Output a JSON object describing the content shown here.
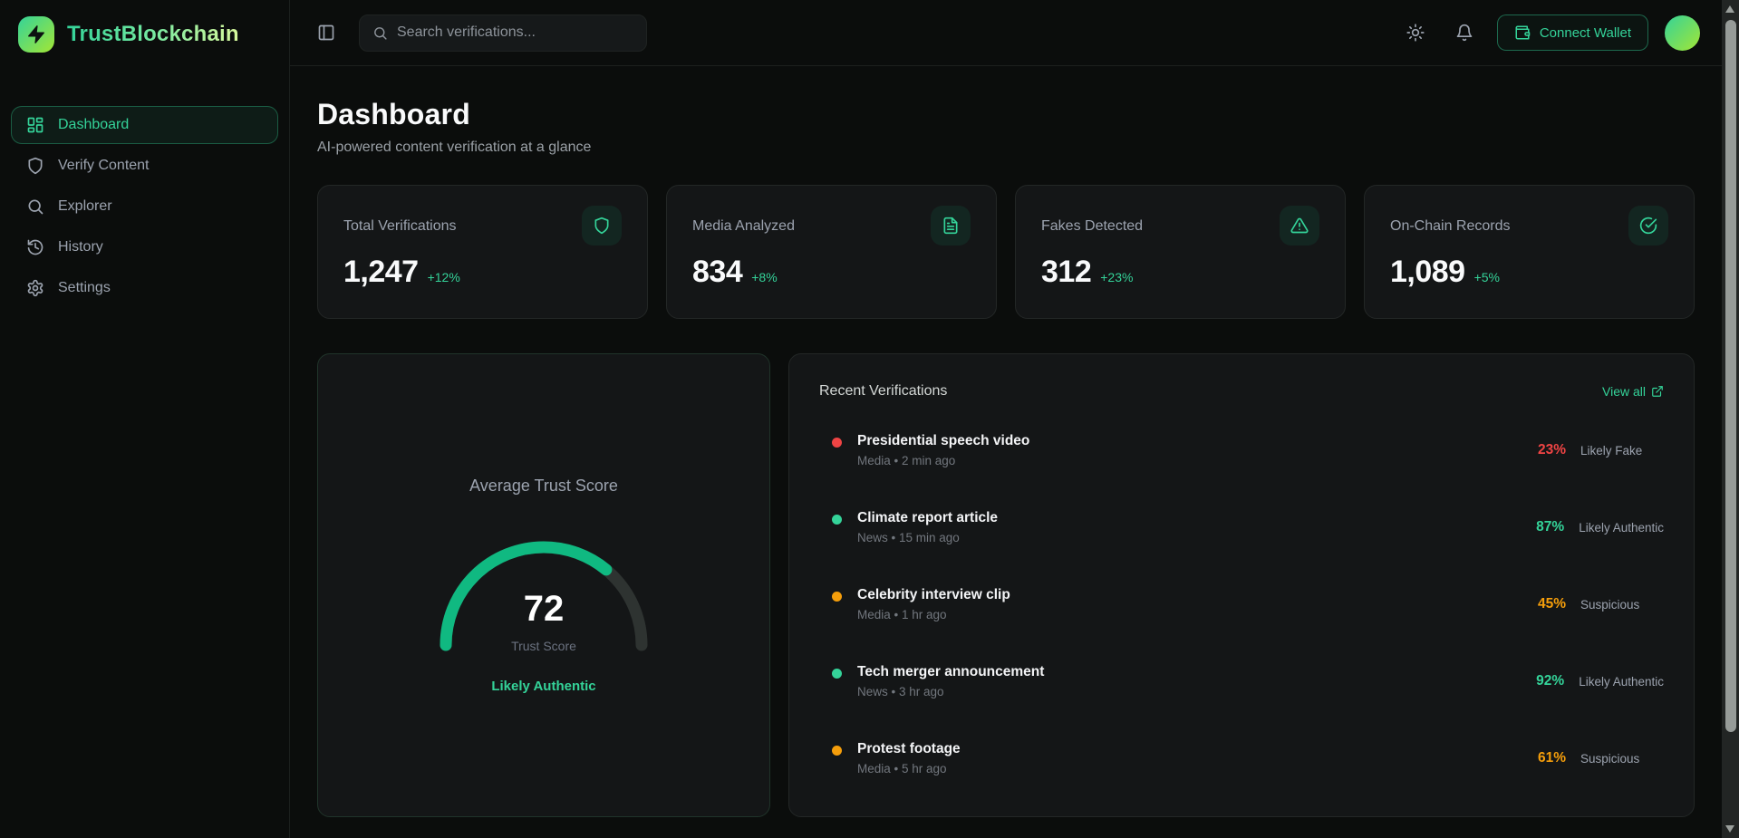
{
  "colors": {
    "accent": "#34d399",
    "gauge_green": "#10b981",
    "gauge_track": "#2e3331",
    "status": {
      "fake": "#ef4444",
      "authentic": "#34d399",
      "suspicious": "#f59e0b"
    }
  },
  "brand": {
    "name": "TrustBlockchain",
    "logo_icon": "zap-icon"
  },
  "sidebar": {
    "items": [
      {
        "label": "Dashboard",
        "icon": "dashboard-icon",
        "active": true
      },
      {
        "label": "Verify Content",
        "icon": "shield-icon",
        "active": false
      },
      {
        "label": "Explorer",
        "icon": "search-icon",
        "active": false
      },
      {
        "label": "History",
        "icon": "history-icon",
        "active": false
      },
      {
        "label": "Settings",
        "icon": "settings-icon",
        "active": false
      }
    ]
  },
  "topbar": {
    "search_placeholder": "Search verifications...",
    "connect_wallet_label": "Connect Wallet"
  },
  "page": {
    "title": "Dashboard",
    "subtitle": "AI-powered content verification at a glance"
  },
  "stats": [
    {
      "label": "Total Verifications",
      "value": "1,247",
      "delta": "+12%",
      "icon": "shield-icon"
    },
    {
      "label": "Media Analyzed",
      "value": "834",
      "delta": "+8%",
      "icon": "file-text-icon"
    },
    {
      "label": "Fakes Detected",
      "value": "312",
      "delta": "+23%",
      "icon": "alert-triangle-icon"
    },
    {
      "label": "On-Chain Records",
      "value": "1,089",
      "delta": "+5%",
      "icon": "check-circle-icon"
    }
  ],
  "trust_gauge": {
    "title": "Average Trust Score",
    "score": "72",
    "percent": 72,
    "min": 0,
    "max": 100,
    "score_label": "Trust Score",
    "verdict": "Likely Authentic"
  },
  "recent": {
    "title": "Recent Verifications",
    "view_all_label": "View all",
    "items": [
      {
        "title": "Presidential speech video",
        "meta": "Media • 2 min ago",
        "percent": "23%",
        "verdict": "Likely Fake",
        "status": "fake"
      },
      {
        "title": "Climate report article",
        "meta": "News • 15 min ago",
        "percent": "87%",
        "verdict": "Likely Authentic",
        "status": "authentic"
      },
      {
        "title": "Celebrity interview clip",
        "meta": "Media • 1 hr ago",
        "percent": "45%",
        "verdict": "Suspicious",
        "status": "suspicious"
      },
      {
        "title": "Tech merger announcement",
        "meta": "News • 3 hr ago",
        "percent": "92%",
        "verdict": "Likely Authentic",
        "status": "authentic"
      },
      {
        "title": "Protest footage",
        "meta": "Media • 5 hr ago",
        "percent": "61%",
        "verdict": "Suspicious",
        "status": "suspicious"
      }
    ]
  }
}
